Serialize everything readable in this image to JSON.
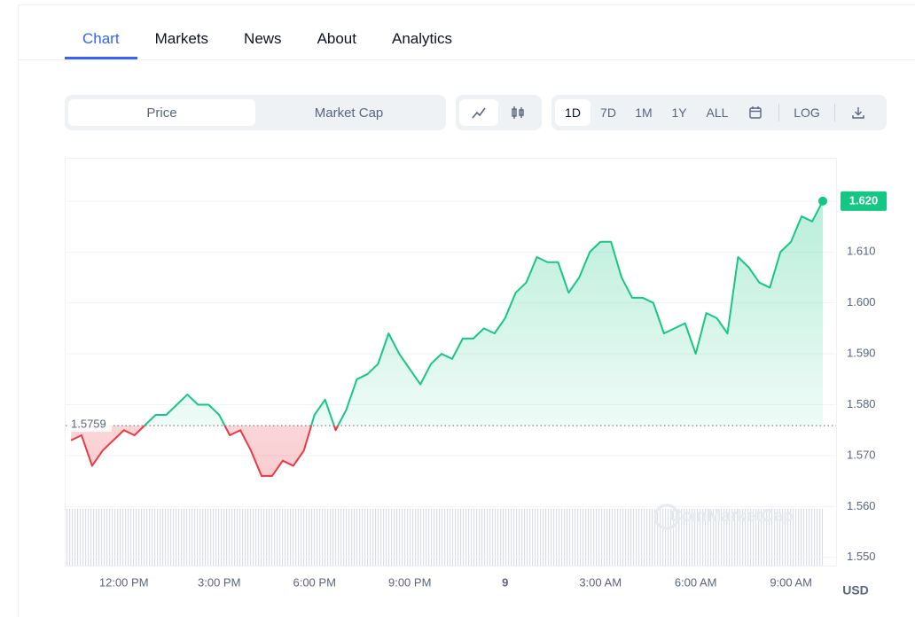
{
  "tabs": [
    "Chart",
    "Markets",
    "News",
    "About",
    "Analytics"
  ],
  "active_tab": 0,
  "chart_toggle": [
    "Price",
    "Market Cap"
  ],
  "active_toggle": 0,
  "ranges": [
    "1D",
    "7D",
    "1M",
    "1Y",
    "ALL"
  ],
  "active_range": 0,
  "log_button": "LOG",
  "chart_data": {
    "type": "line",
    "categories": [
      null,
      null,
      null,
      null,
      null,
      "12:00 PM",
      null,
      null,
      null,
      null,
      null,
      null,
      null,
      null,
      "3:00 PM",
      null,
      null,
      null,
      null,
      null,
      null,
      null,
      null,
      "6:00 PM",
      null,
      null,
      null,
      null,
      null,
      null,
      null,
      null,
      "9:00 PM",
      null,
      null,
      null,
      null,
      null,
      null,
      null,
      null,
      "9",
      null,
      null,
      null,
      null,
      null,
      null,
      null,
      null,
      "3:00 AM",
      null,
      null,
      null,
      null,
      null,
      null,
      null,
      null,
      "6:00 AM",
      null,
      null,
      null,
      null,
      null,
      null,
      null,
      null,
      "9:00 AM",
      null,
      null,
      null
    ],
    "values": [
      1.573,
      1.574,
      1.568,
      1.571,
      1.573,
      1.575,
      1.574,
      1.576,
      1.578,
      1.578,
      1.58,
      1.582,
      1.58,
      1.58,
      1.578,
      1.574,
      1.575,
      1.571,
      1.566,
      1.566,
      1.569,
      1.568,
      1.571,
      1.578,
      1.581,
      1.575,
      1.579,
      1.585,
      1.586,
      1.588,
      1.594,
      1.59,
      1.587,
      1.584,
      1.588,
      1.59,
      1.589,
      1.593,
      1.593,
      1.595,
      1.594,
      1.597,
      1.602,
      1.604,
      1.609,
      1.608,
      1.608,
      1.602,
      1.605,
      1.61,
      1.612,
      1.612,
      1.605,
      1.601,
      1.601,
      1.6,
      1.594,
      1.595,
      1.596,
      1.59,
      1.598,
      1.597,
      1.594,
      1.609,
      1.607,
      1.604,
      1.603,
      1.61,
      1.612,
      1.617,
      1.616,
      1.62
    ],
    "color_up": "#16c784",
    "color_down": "#ea3943",
    "baseline": 1.5759,
    "current_price": {
      "value": 1.62,
      "label": "1.620"
    },
    "ylim": [
      1.5484,
      1.6285
    ],
    "yticks": [
      {
        "value": 1.55,
        "label": "1.550"
      },
      {
        "value": 1.56,
        "label": "1.560"
      },
      {
        "value": 1.57,
        "label": "1.570"
      },
      {
        "value": 1.58,
        "label": "1.580"
      },
      {
        "value": 1.59,
        "label": "1.590"
      },
      {
        "value": 1.6,
        "label": "1.600"
      },
      {
        "value": 1.61,
        "label": "1.610"
      },
      {
        "value": 1.62,
        "label": "1.620"
      }
    ],
    "grid": true,
    "currency": "USD",
    "watermark": "CoinMarketCap"
  }
}
